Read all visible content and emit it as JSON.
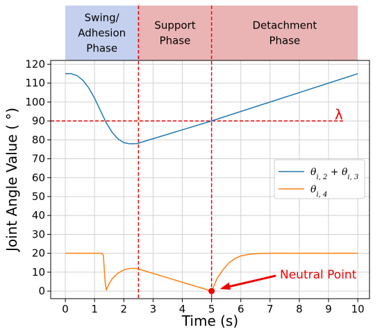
{
  "chart_data": {
    "type": "line",
    "xlabel": "Time (s)",
    "ylabel": "Joint Angle Value  ( °)",
    "xlim": [
      -0.5,
      10.4
    ],
    "ylim": [
      -4,
      122
    ],
    "xticks": [
      0,
      1,
      2,
      3,
      4,
      5,
      6,
      7,
      8,
      9,
      10
    ],
    "yticks": [
      0,
      10,
      20,
      30,
      40,
      50,
      60,
      70,
      80,
      90,
      100,
      110,
      120
    ],
    "grid": true,
    "legend_position": "right",
    "series": [
      {
        "name_parts": [
          "θ",
          "i, 2",
          " + θ",
          "i, 3"
        ],
        "color": "#1f77b4",
        "points": [
          [
            0,
            115
          ],
          [
            0.2,
            115
          ],
          [
            0.4,
            114
          ],
          [
            0.6,
            111.5
          ],
          [
            0.8,
            107.5
          ],
          [
            1.0,
            102
          ],
          [
            1.2,
            95.5
          ],
          [
            1.4,
            89
          ],
          [
            1.6,
            84
          ],
          [
            1.8,
            80.5
          ],
          [
            2.0,
            78.5
          ],
          [
            2.2,
            77.9
          ],
          [
            2.45,
            78
          ],
          [
            5,
            90
          ],
          [
            10,
            115
          ]
        ]
      },
      {
        "name_parts": [
          "θ",
          "i, 4"
        ],
        "color": "#ff7f0e",
        "points": [
          [
            0,
            20
          ],
          [
            1.25,
            20
          ],
          [
            1.3,
            19
          ],
          [
            1.33,
            12
          ],
          [
            1.36,
            5
          ],
          [
            1.4,
            0.6
          ],
          [
            1.5,
            4
          ],
          [
            1.6,
            6.5
          ],
          [
            1.8,
            9.5
          ],
          [
            2.0,
            11.2
          ],
          [
            2.2,
            12
          ],
          [
            2.4,
            12
          ],
          [
            2.5,
            11.7
          ],
          [
            5,
            0
          ],
          [
            5.2,
            7
          ],
          [
            5.4,
            11.5
          ],
          [
            5.6,
            15
          ],
          [
            5.8,
            17.2
          ],
          [
            6.0,
            18.6
          ],
          [
            6.3,
            19.5
          ],
          [
            6.7,
            19.95
          ],
          [
            7,
            20
          ],
          [
            10,
            20
          ]
        ]
      }
    ],
    "phases": [
      {
        "label_lines": [
          "Swing/",
          "Adhesion",
          "Phase"
        ],
        "x_start": 0,
        "x_end": 2.5,
        "color": "#c4d0ee"
      },
      {
        "label_lines": [
          "Support",
          "Phase"
        ],
        "x_start": 2.5,
        "x_end": 5,
        "color": "#ebb4b4"
      },
      {
        "label_lines": [
          "Detachment",
          "Phase"
        ],
        "x_start": 5,
        "x_end": 10,
        "color": "#ebb4b4"
      }
    ],
    "reference_lines": {
      "vertical_x": [
        2.5,
        5
      ],
      "horizontal_y": 90,
      "color": "#ee0000"
    },
    "annotations": {
      "lambda_label": "λ",
      "neutral_point_label": "Neutral Point",
      "neutral_point": [
        5,
        0
      ]
    }
  }
}
